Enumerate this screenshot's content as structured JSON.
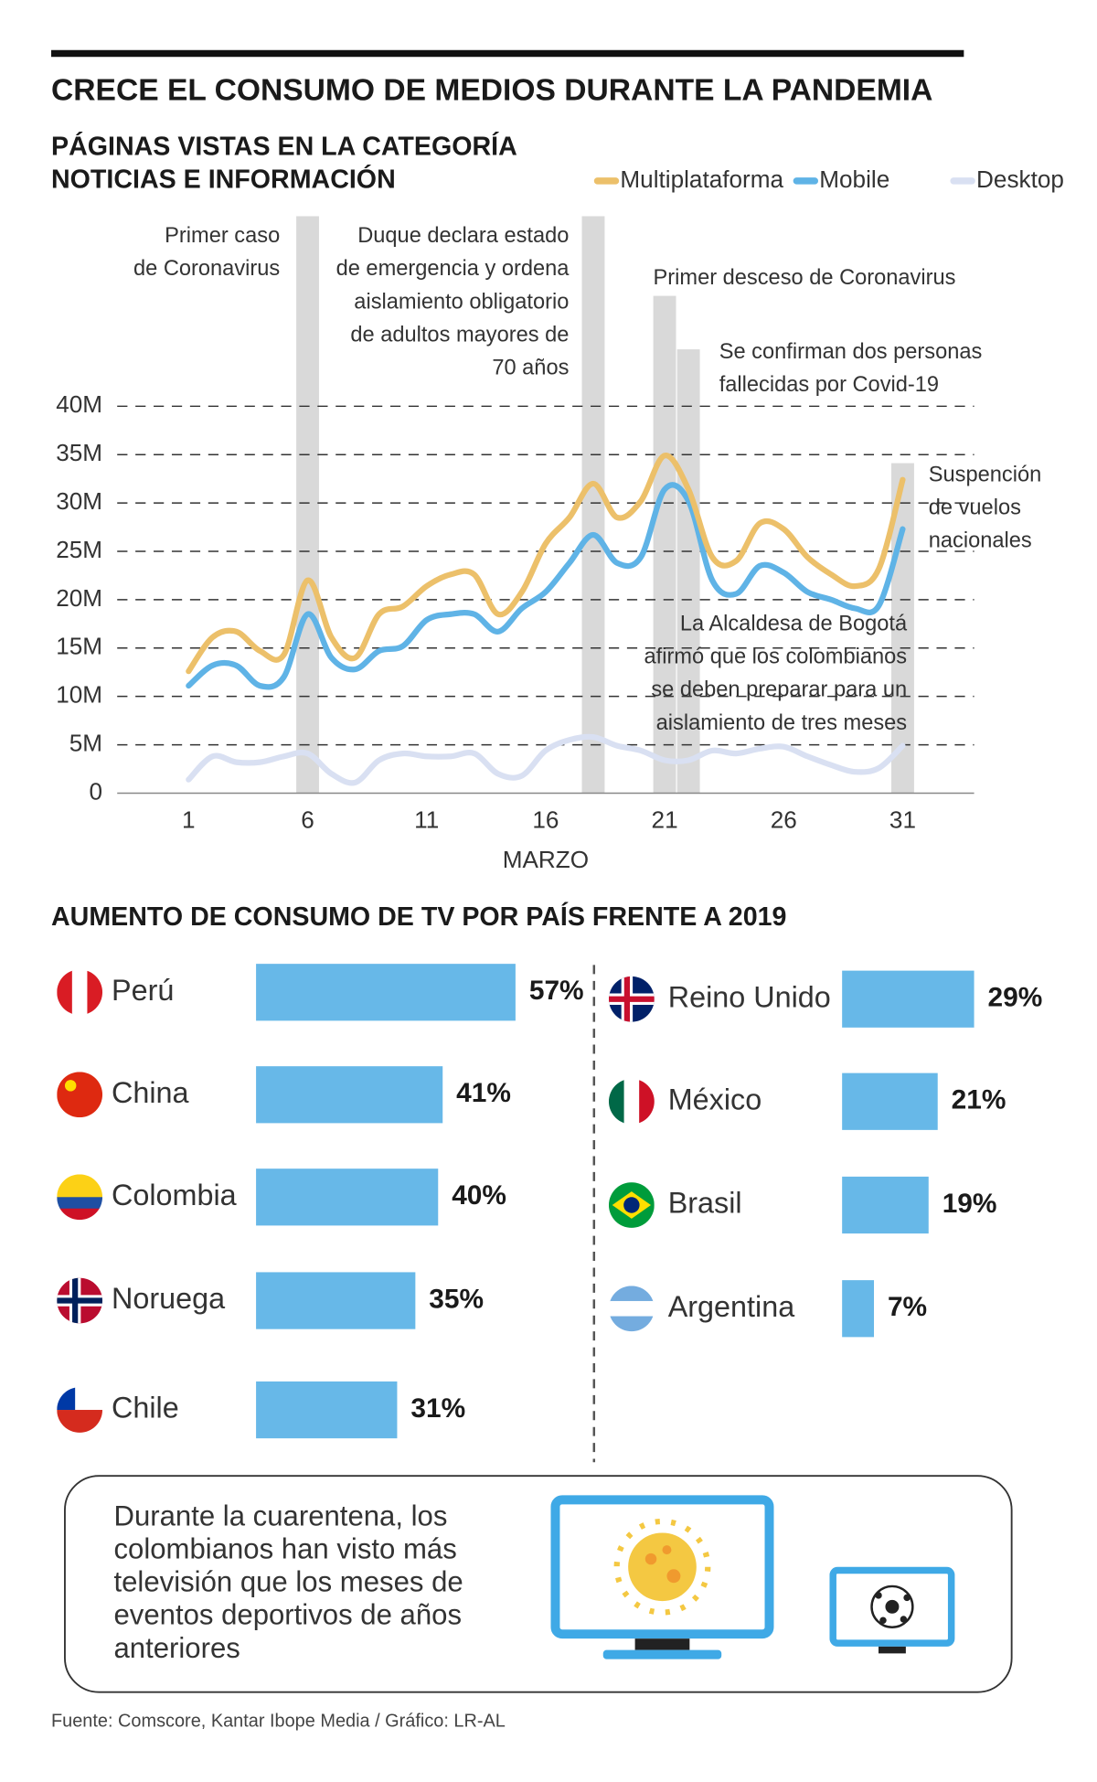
{
  "title": "CRECE EL CONSUMO DE MEDIOS DURANTE LA PANDEMIA",
  "chart_data": [
    {
      "type": "line",
      "title": [
        "PÁGINAS VISTAS EN LA CATEGORÍA",
        "NOTICIAS E INFORMACIÓN"
      ],
      "x": [
        1,
        2,
        3,
        4,
        5,
        6,
        7,
        8,
        9,
        10,
        11,
        12,
        13,
        14,
        15,
        16,
        17,
        18,
        19,
        20,
        21,
        22,
        23,
        24,
        25,
        26,
        27,
        28,
        29,
        30,
        31
      ],
      "xlabel": "MARZO",
      "xlim": [
        -2,
        34
      ],
      "xticks": [
        1,
        6,
        11,
        16,
        21,
        26,
        31
      ],
      "ylim": [
        0,
        40
      ],
      "yticks": [
        0,
        {
          "value": 5,
          "label": "5M"
        },
        {
          "value": 10,
          "label": "10M"
        },
        {
          "value": 15,
          "label": "15M"
        },
        {
          "value": 20,
          "label": "20M"
        },
        {
          "value": 25,
          "label": "25M"
        },
        {
          "value": 30,
          "label": "30M"
        },
        {
          "value": 35,
          "label": "35M"
        },
        {
          "value": 40,
          "label": "40M"
        }
      ],
      "grid": true,
      "series": [
        {
          "name": "Multiplataforma",
          "color": "#ecc06a",
          "values": [
            12.6,
            16.1,
            16.7,
            14.7,
            14.3,
            22,
            16.1,
            14,
            18.5,
            19.3,
            21.4,
            22.6,
            22.6,
            18.5,
            20.8,
            25.8,
            28.5,
            32,
            28.5,
            30.2,
            34.9,
            31.4,
            24.4,
            24,
            27.9,
            27.3,
            24.4,
            22.6,
            21.4,
            23.2,
            32.4
          ]
        },
        {
          "name": "Mobile",
          "color": "#5fb3e6",
          "values": [
            11.1,
            13.2,
            13.2,
            11.1,
            12,
            18.5,
            14,
            12.8,
            14.7,
            15.2,
            17.9,
            18.5,
            18.5,
            16.7,
            19.1,
            20.8,
            23.8,
            26.7,
            23.8,
            24.4,
            31.4,
            30.2,
            22,
            20.6,
            23.5,
            22.8,
            20.8,
            20,
            19.1,
            19.4,
            27.3
          ]
        },
        {
          "name": "Desktop",
          "color": "#d9e0f2",
          "values": [
            1.4,
            3.8,
            3.2,
            3.2,
            3.8,
            4.1,
            2,
            1.1,
            3.4,
            4.1,
            3.8,
            3.8,
            4.1,
            2,
            1.8,
            4.4,
            5.5,
            5.8,
            4.9,
            4.4,
            3.4,
            3.4,
            4.4,
            4.1,
            4.6,
            4.8,
            3.8,
            2.9,
            2.2,
            2.6,
            4.9
          ]
        }
      ],
      "annotations": [
        {
          "text": [
            "Primer caso",
            "de Coronavirus"
          ],
          "x": 6
        },
        {
          "text": [
            "Duque declara estado",
            "de emergencia y ordena",
            "aislamiento obligatorio",
            "de adultos mayores de",
            "70 años"
          ],
          "x": 18
        },
        {
          "text": [
            "Primer desceso de Coronavirus"
          ],
          "x": 21
        },
        {
          "text": [
            "Se confirman dos personas",
            "fallecidas por Covid-19"
          ],
          "x": 22
        },
        {
          "text": [
            "Suspención",
            "de vuelos",
            "nacionales"
          ],
          "x": 31
        },
        {
          "text": [
            "La Alcaldesa de Bogotá",
            "afirmó que los colombianos",
            "se deben preparar para un",
            "aislamiento de tres meses"
          ]
        }
      ]
    },
    {
      "type": "bar",
      "orientation": "horizontal",
      "title": "AUMENTO DE CONSUMO DE TV POR PAÍS FRENTE A 2019",
      "categories": [
        "Perú",
        "China",
        "Colombia",
        "Noruega",
        "Chile",
        "Reino Unido",
        "México",
        "Brasil",
        "Argentina"
      ],
      "values": [
        57,
        41,
        40,
        35,
        31,
        29,
        21,
        19,
        7
      ],
      "value_labels": [
        "57%",
        "41%",
        "40%",
        "35%",
        "31%",
        "29%",
        "21%",
        "19%",
        "7%"
      ],
      "color": "#67b8e8"
    }
  ],
  "note": [
    "Durante la cuarentena, los",
    "colombianos han visto más",
    "televisión que los meses de",
    "eventos deportivos de años",
    "anteriores"
  ],
  "source": "Fuente: Comscore, Kantar Ibope Media / Gráfico: LR-AL"
}
